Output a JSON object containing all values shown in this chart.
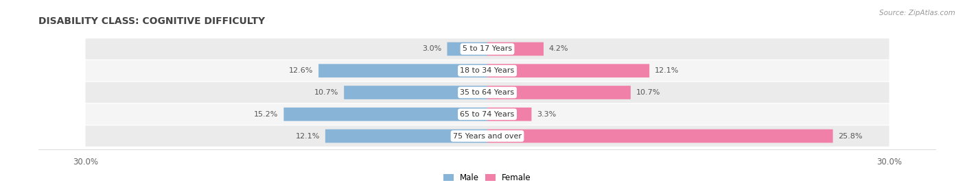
{
  "title": "DISABILITY CLASS: COGNITIVE DIFFICULTY",
  "source": "Source: ZipAtlas.com",
  "categories": [
    "5 to 17 Years",
    "18 to 34 Years",
    "35 to 64 Years",
    "65 to 74 Years",
    "75 Years and over"
  ],
  "male_values": [
    3.0,
    12.6,
    10.7,
    15.2,
    12.1
  ],
  "female_values": [
    4.2,
    12.1,
    10.7,
    3.3,
    25.8
  ],
  "max_val": 30.0,
  "male_color": "#88b4d8",
  "female_color": "#f080a8",
  "row_bg_even": "#ebebeb",
  "row_bg_odd": "#f5f5f5",
  "label_color": "#555555",
  "title_color": "#444444",
  "legend_male": "Male",
  "legend_female": "Female"
}
